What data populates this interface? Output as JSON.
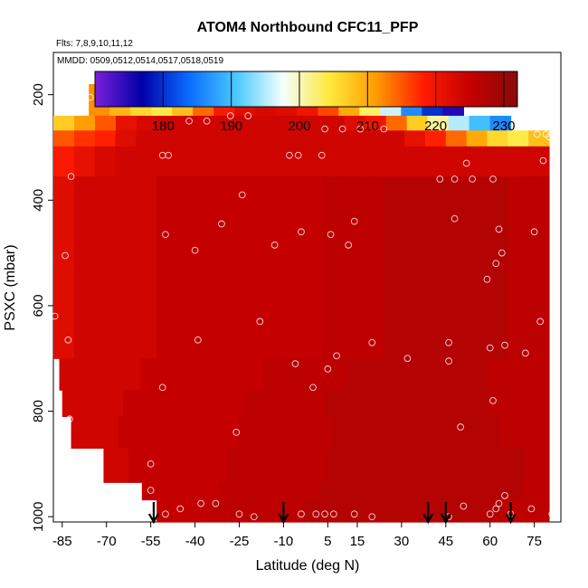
{
  "chart_data": {
    "type": "heatmap",
    "title": "ATOM4 Northbound CFC11_PFP",
    "subtitle_flights": "Flts: 7,8,9,10,11,12",
    "subtitle_dates": "MMDD: 0509,0512,0514,0517,0518,0519",
    "xlabel": "Latitude (deg N)",
    "ylabel": "PSXC (mbar)",
    "xlim": [
      -88,
      84
    ],
    "ylim": [
      1010,
      120
    ],
    "y_reversed": true,
    "x_ticks": [
      -85,
      -70,
      -55,
      -40,
      -25,
      -10,
      5,
      15,
      30,
      45,
      60,
      75
    ],
    "y_ticks": [
      200,
      400,
      600,
      800,
      1000
    ],
    "colorbar": {
      "min": 170,
      "max": 232,
      "ticks": [
        180,
        190,
        200,
        210,
        220,
        230
      ],
      "palette": [
        "#7a1fd8",
        "#0000a8",
        "#0a6cff",
        "#48c8ff",
        "#f4ffff",
        "#ffe93a",
        "#ff9a00",
        "#ff1c00",
        "#c40000",
        "#8a0a0a"
      ]
    },
    "surface": {
      "bands": [
        {
          "p_top": 180,
          "p_bot": 240,
          "lat_min": -76,
          "lat_max": 51,
          "values": [
            212,
            209,
            206,
            204,
            208,
            214,
            219,
            222,
            223,
            222,
            220,
            216,
            210,
            203,
            196,
            186,
            180,
            175
          ]
        },
        {
          "p_top": 240,
          "p_bot": 268,
          "lat_min": -88,
          "lat_max": 67,
          "values": [
            207,
            211,
            215,
            221,
            223,
            224,
            224,
            224,
            224,
            224,
            224,
            224,
            224,
            224,
            222,
            220,
            214,
            207,
            201,
            195,
            190,
            186
          ]
        },
        {
          "p_top": 268,
          "p_bot": 298,
          "lat_min": -88,
          "lat_max": 80,
          "values": [
            215,
            217,
            218,
            222,
            224,
            224,
            224,
            224,
            224,
            224,
            224,
            224,
            224,
            224,
            224,
            224,
            224,
            221,
            218,
            214,
            210,
            206,
            204,
            208
          ]
        },
        {
          "p_top": 298,
          "p_bot": 355,
          "lat_min": -88,
          "lat_max": 80,
          "values": [
            219,
            221,
            223,
            224,
            224,
            224,
            224,
            224,
            224,
            224,
            224,
            224,
            224,
            224,
            224,
            224,
            224,
            224,
            224,
            224,
            224,
            224,
            224,
            224
          ]
        },
        {
          "p_top": 355,
          "p_bot": 700,
          "lat_min": -88,
          "lat_max": 80,
          "values": [
            222,
            224,
            224,
            224,
            224,
            225,
            225,
            225,
            225,
            225,
            225,
            225,
            225,
            226,
            226,
            226,
            227,
            227,
            227,
            227,
            227,
            227,
            226,
            226
          ]
        },
        {
          "p_top": 700,
          "p_bot": 760,
          "lat_min": -86,
          "lat_max": 80,
          "values": [
            224,
            224,
            224,
            224,
            225,
            225,
            225,
            225,
            225,
            225,
            226,
            226,
            226,
            226,
            227,
            227,
            227,
            227,
            227,
            227,
            227,
            226,
            226,
            226
          ]
        },
        {
          "p_top": 760,
          "p_bot": 810,
          "lat_min": -85,
          "lat_max": 80,
          "values": [
            224,
            224,
            224,
            225,
            225,
            225,
            225,
            225,
            225,
            226,
            226,
            226,
            226,
            227,
            227,
            227,
            227,
            227,
            227,
            227,
            227,
            226,
            226,
            226
          ]
        },
        {
          "p_top": 810,
          "p_bot": 870,
          "lat_min": -82,
          "lat_max": 80,
          "values": [
            224,
            224,
            225,
            225,
            225,
            225,
            225,
            226,
            226,
            226,
            226,
            227,
            227,
            227,
            227,
            227,
            227,
            227,
            226,
            226
          ]
        },
        {
          "p_top": 870,
          "p_bot": 935,
          "lat_min": -71,
          "lat_max": 80,
          "values": [
            224,
            225,
            225,
            225,
            225,
            226,
            226,
            226,
            226,
            227,
            227,
            227,
            227,
            227,
            227,
            227,
            227,
            226
          ]
        },
        {
          "p_top": 935,
          "p_bot": 968,
          "lat_min": -58,
          "lat_max": 80,
          "values": [
            225,
            225,
            225,
            226,
            226,
            226,
            226,
            227,
            227,
            227,
            227,
            227,
            227,
            227,
            227,
            226
          ]
        },
        {
          "p_top": 968,
          "p_bot": 1010,
          "lat_min": -53,
          "lat_max": 80,
          "values": [
            225,
            225,
            226,
            226,
            226,
            226,
            227,
            227,
            227,
            227,
            227,
            227,
            227,
            227,
            226,
            226
          ]
        }
      ]
    },
    "samples": [
      [
        -75.5,
        205
      ],
      [
        -87.5,
        620
      ],
      [
        -83.0,
        665
      ],
      [
        -82.5,
        815
      ],
      [
        -82.0,
        355
      ],
      [
        -84.0,
        505
      ],
      [
        -55.0,
        900
      ],
      [
        -55.0,
        950
      ],
      [
        -51.0,
        315
      ],
      [
        -49.0,
        315
      ],
      [
        -50.0,
        465
      ],
      [
        -51.0,
        755
      ],
      [
        -50.0,
        995
      ],
      [
        -45.0,
        985
      ],
      [
        -42.0,
        250
      ],
      [
        -40.0,
        495
      ],
      [
        -39.0,
        665
      ],
      [
        -38.0,
        975
      ],
      [
        -36.0,
        250
      ],
      [
        -33.0,
        975
      ],
      [
        -31.0,
        445
      ],
      [
        -28.0,
        240
      ],
      [
        -26.0,
        840
      ],
      [
        -25.0,
        995
      ],
      [
        -24.0,
        390
      ],
      [
        -22.0,
        240
      ],
      [
        -20.0,
        1000
      ],
      [
        -18.0,
        630
      ],
      [
        -15.0,
        210
      ],
      [
        -13.0,
        485
      ],
      [
        -8.0,
        315
      ],
      [
        -5.0,
        315
      ],
      [
        -4.0,
        460
      ],
      [
        -6.0,
        710
      ],
      [
        -4.0,
        995
      ],
      [
        0.0,
        755
      ],
      [
        1.0,
        995
      ],
      [
        3.0,
        315
      ],
      [
        4.0,
        265
      ],
      [
        4.0,
        995
      ],
      [
        5.0,
        720
      ],
      [
        6.0,
        465
      ],
      [
        7.0,
        995
      ],
      [
        8.0,
        695
      ],
      [
        10.0,
        265
      ],
      [
        12.0,
        485
      ],
      [
        14.0,
        440
      ],
      [
        14.0,
        995
      ],
      [
        16.0,
        265
      ],
      [
        20.0,
        670
      ],
      [
        20.0,
        1000
      ],
      [
        24.0,
        265
      ],
      [
        32.0,
        700
      ],
      [
        44.0,
        210
      ],
      [
        43.0,
        360
      ],
      [
        46.0,
        670
      ],
      [
        46.0,
        705
      ],
      [
        46.0,
        1000
      ],
      [
        48.0,
        360
      ],
      [
        48.0,
        435
      ],
      [
        50.0,
        830
      ],
      [
        51.0,
        980
      ],
      [
        52.0,
        330
      ],
      [
        54.0,
        360
      ],
      [
        59.0,
        550
      ],
      [
        60.0,
        995
      ],
      [
        60.0,
        680
      ],
      [
        61.0,
        780
      ],
      [
        61.0,
        360
      ],
      [
        62.0,
        520
      ],
      [
        62.0,
        985
      ],
      [
        63.0,
        975
      ],
      [
        63.0,
        455
      ],
      [
        64.0,
        500
      ],
      [
        65.0,
        960
      ],
      [
        65.0,
        675
      ],
      [
        66.0,
        230
      ],
      [
        67.0,
        995
      ],
      [
        71.0,
        240
      ],
      [
        72.0,
        690
      ],
      [
        74.0,
        985
      ],
      [
        75.0,
        460
      ],
      [
        76.0,
        275
      ],
      [
        77.0,
        630
      ],
      [
        78.0,
        325
      ],
      [
        79.0,
        275
      ],
      [
        80.0,
        280
      ],
      [
        82.0,
        440
      ],
      [
        81.0,
        995
      ],
      [
        82.0,
        240
      ]
    ],
    "arrows_lat": [
      -54,
      -10,
      39,
      45,
      67
    ]
  }
}
